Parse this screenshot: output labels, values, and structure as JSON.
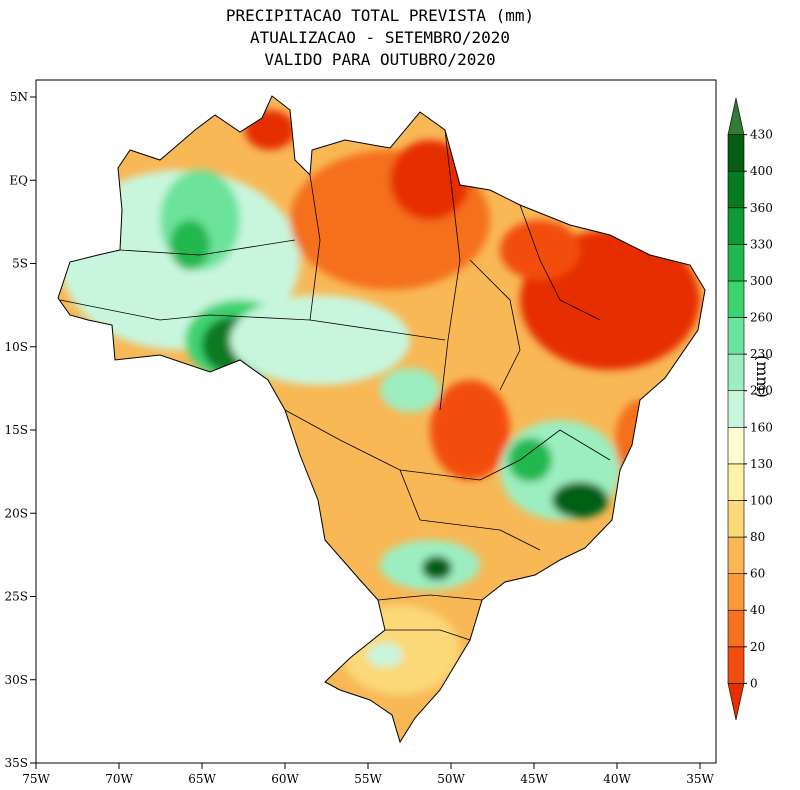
{
  "title": {
    "line1": "PRECIPITACAO TOTAL PREVISTA (mm)",
    "line2": "ATUALIZACAO - SETEMBRO/2020",
    "line3": "VALIDO PARA OUTUBRO/2020"
  },
  "axes": {
    "x_ticks": [
      "75W",
      "70W",
      "65W",
      "60W",
      "55W",
      "50W",
      "45W",
      "40W",
      "35W"
    ],
    "y_ticks": [
      "5N",
      "EQ",
      "5S",
      "10S",
      "15S",
      "20S",
      "25S",
      "30S",
      "35S"
    ],
    "lon_range": [
      -75,
      -34.5
    ],
    "lat_range": [
      -35,
      6
    ]
  },
  "colorbar": {
    "unit": "(mm)",
    "levels": [
      "0",
      "20",
      "40",
      "60",
      "80",
      "100",
      "130",
      "160",
      "200",
      "230",
      "260",
      "300",
      "330",
      "360",
      "400",
      "430"
    ],
    "colors": [
      "#e62e00",
      "#f24d0f",
      "#f5701f",
      "#f89a3a",
      "#f8b856",
      "#fbd878",
      "#fdf2a8",
      "#fdfbd2",
      "#c8f6dd",
      "#9ceec0",
      "#6ce29a",
      "#3ed271",
      "#20b84f",
      "#0f9a36",
      "#087a22",
      "#045e15",
      "#2e7d32"
    ]
  }
}
